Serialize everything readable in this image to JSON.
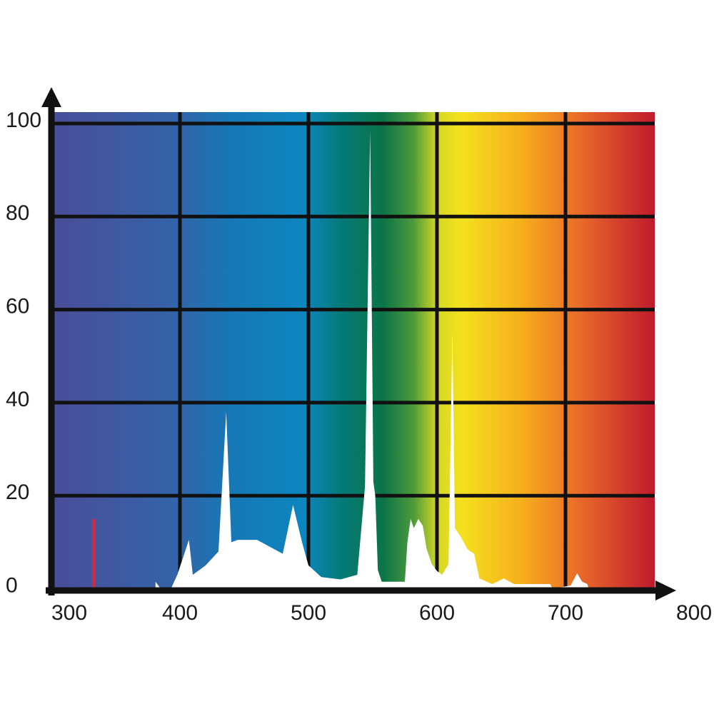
{
  "chart_data": {
    "type": "area",
    "xlim": [
      300,
      800
    ],
    "ylim": [
      0,
      100
    ],
    "xticks": [
      300,
      400,
      500,
      600,
      700,
      800
    ],
    "yticks": [
      0,
      20,
      40,
      60,
      80,
      100
    ],
    "grid": true,
    "series": [
      {
        "type": "area",
        "color": "#ffffff",
        "x": [
          381,
          385,
          393,
          398,
          407,
          410,
          420,
          430,
          436,
          440,
          445,
          460,
          470,
          480,
          488,
          495,
          500,
          510,
          525,
          538,
          544,
          548,
          550.5,
          552,
          554,
          557,
          575,
          577,
          579.5,
          582,
          585.5,
          589,
          592,
          596,
          600,
          604,
          609,
          612,
          614,
          618,
          624,
          629,
          633,
          643,
          652,
          660,
          688,
          690,
          704,
          709,
          713,
          717,
          718
        ],
        "values": [
          1.5,
          0,
          0,
          3,
          10.5,
          3,
          5,
          8,
          38,
          10,
          10.5,
          10.5,
          9,
          7.5,
          18,
          10,
          5,
          2.5,
          2,
          3,
          22,
          98.5,
          23,
          20,
          4,
          1.5,
          1.5,
          10,
          15,
          13,
          15,
          13.5,
          8.5,
          5.3,
          3.8,
          3,
          5.3,
          55.5,
          13,
          11.4,
          8.4,
          7.5,
          2.2,
          1,
          2.2,
          1,
          1,
          0,
          0.7,
          3.3,
          1.5,
          1,
          0
        ]
      },
      {
        "type": "bar",
        "color": "#d22a3c",
        "x": [
          333
        ],
        "values": [
          15
        ]
      }
    ]
  }
}
